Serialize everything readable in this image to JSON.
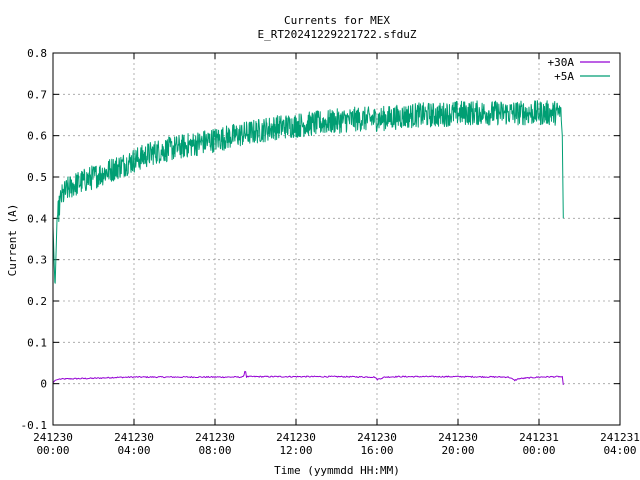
{
  "chart_data": {
    "type": "line",
    "title": "Currents for MEX",
    "subtitle": "E_RT20241229221722.sfduZ",
    "xlabel": "Time (yymmdd HH:MM)",
    "ylabel": "Current (A)",
    "ylim": [
      -0.1,
      0.8
    ],
    "xlim_hours": [
      0,
      28
    ],
    "y_ticks": [
      "-0.1",
      "0",
      "0.1",
      "0.2",
      "0.3",
      "0.4",
      "0.5",
      "0.6",
      "0.7",
      "0.8"
    ],
    "x_ticks": [
      {
        "date": "241230",
        "time": "00:00"
      },
      {
        "date": "241230",
        "time": "04:00"
      },
      {
        "date": "241230",
        "time": "08:00"
      },
      {
        "date": "241230",
        "time": "12:00"
      },
      {
        "date": "241230",
        "time": "16:00"
      },
      {
        "date": "241230",
        "time": "20:00"
      },
      {
        "date": "241231",
        "time": "00:00"
      },
      {
        "date": "241231",
        "time": "04:00"
      }
    ],
    "grid": true,
    "legend_position": "top-right",
    "series": [
      {
        "name": "+30A",
        "color": "#9400d3",
        "x_hours": [
          0.0,
          0.1,
          0.3,
          1.0,
          2.0,
          3.0,
          4.0,
          6.0,
          8.0,
          9.0,
          9.4,
          9.5,
          9.55,
          9.6,
          10.0,
          12.0,
          14.0,
          15.9,
          16.0,
          16.4,
          17.0,
          20.0,
          22.5,
          22.8,
          23.0,
          24.0,
          25.0,
          25.15,
          25.2
        ],
        "values": [
          0.002,
          0.008,
          0.011,
          0.012,
          0.013,
          0.015,
          0.016,
          0.016,
          0.016,
          0.016,
          0.016,
          0.035,
          0.016,
          0.017,
          0.017,
          0.017,
          0.017,
          0.016,
          0.01,
          0.016,
          0.017,
          0.017,
          0.016,
          0.008,
          0.012,
          0.016,
          0.017,
          0.016,
          -0.003
        ]
      },
      {
        "name": "+5A",
        "color": "#009e73",
        "x_hours": [
          0.0,
          0.1,
          0.2,
          0.4,
          0.7,
          1.0,
          1.5,
          2.0,
          2.5,
          3.0,
          3.5,
          4.0,
          5.0,
          6.0,
          7.0,
          8.0,
          9.0,
          10.0,
          11.0,
          12.0,
          13.0,
          14.0,
          15.0,
          16.0,
          17.0,
          18.0,
          19.0,
          20.0,
          21.0,
          22.0,
          23.0,
          24.0,
          24.5,
          25.0,
          25.1,
          25.15,
          25.2
        ],
        "values": [
          0.38,
          0.23,
          0.4,
          0.45,
          0.47,
          0.48,
          0.49,
          0.5,
          0.51,
          0.52,
          0.53,
          0.54,
          0.56,
          0.57,
          0.58,
          0.59,
          0.6,
          0.61,
          0.62,
          0.625,
          0.63,
          0.635,
          0.64,
          0.64,
          0.645,
          0.65,
          0.65,
          0.655,
          0.655,
          0.655,
          0.655,
          0.655,
          0.655,
          0.655,
          0.655,
          0.6,
          0.4
        ],
        "noise_amplitude": 0.03
      }
    ]
  }
}
